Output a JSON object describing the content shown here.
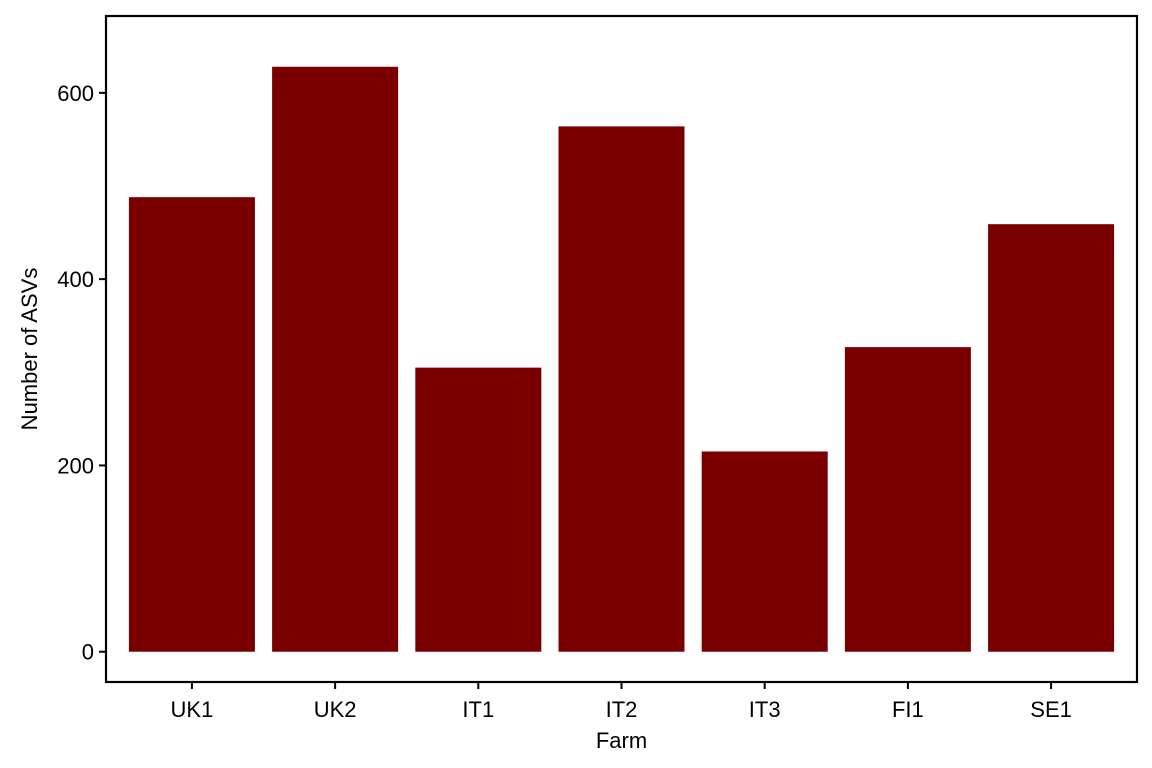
{
  "chart_data": {
    "type": "bar",
    "title": "",
    "xlabel": "Farm",
    "ylabel": "Number of ASVs",
    "categories": [
      "UK1",
      "UK2",
      "IT1",
      "IT2",
      "IT3",
      "FI1",
      "SE1"
    ],
    "values": [
      488,
      628,
      305,
      564,
      215,
      327,
      459
    ],
    "ylim": [
      -32.5,
      682.5
    ],
    "yticks": [
      0,
      200,
      400,
      600
    ],
    "ytick_labels": [
      "0",
      "200",
      "400",
      "600"
    ],
    "grid": false,
    "legend": "none",
    "bar_color": "#7a0000"
  }
}
